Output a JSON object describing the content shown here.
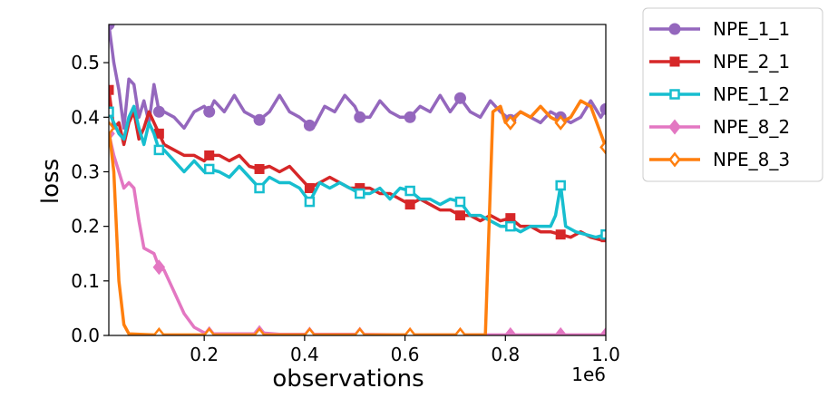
{
  "chart_data": {
    "type": "line",
    "title": "",
    "xlabel": "observations",
    "ylabel": "loss",
    "x_offset_label": "1e6",
    "xlim": [
      0.01,
      1.0
    ],
    "ylim": [
      0.0,
      0.57
    ],
    "xticks": [
      0.2,
      0.4,
      0.6,
      0.8,
      1.0
    ],
    "xtick_labels": [
      "0.2",
      "0.4",
      "0.6",
      "0.8",
      "1.0"
    ],
    "yticks": [
      0.0,
      0.1,
      0.2,
      0.3,
      0.4,
      0.5
    ],
    "ytick_labels": [
      "0.0",
      "0.1",
      "0.2",
      "0.3",
      "0.4",
      "0.5"
    ],
    "grid": false,
    "legend_position": "outside-right",
    "series": [
      {
        "name": "NPE_1_1",
        "color": "#9467bd",
        "marker": "circle",
        "marker_filled": true,
        "points": [
          [
            0.01,
            0.57
          ],
          [
            0.02,
            0.5
          ],
          [
            0.03,
            0.45
          ],
          [
            0.04,
            0.38
          ],
          [
            0.05,
            0.47
          ],
          [
            0.06,
            0.46
          ],
          [
            0.07,
            0.4
          ],
          [
            0.08,
            0.43
          ],
          [
            0.09,
            0.39
          ],
          [
            0.1,
            0.46
          ],
          [
            0.11,
            0.41
          ],
          [
            0.12,
            0.41
          ],
          [
            0.14,
            0.4
          ],
          [
            0.16,
            0.38
          ],
          [
            0.18,
            0.41
          ],
          [
            0.2,
            0.42
          ],
          [
            0.21,
            0.41
          ],
          [
            0.22,
            0.43
          ],
          [
            0.24,
            0.41
          ],
          [
            0.26,
            0.44
          ],
          [
            0.28,
            0.41
          ],
          [
            0.3,
            0.4
          ],
          [
            0.31,
            0.395
          ],
          [
            0.33,
            0.41
          ],
          [
            0.35,
            0.44
          ],
          [
            0.37,
            0.41
          ],
          [
            0.39,
            0.4
          ],
          [
            0.41,
            0.385
          ],
          [
            0.42,
            0.385
          ],
          [
            0.44,
            0.42
          ],
          [
            0.46,
            0.41
          ],
          [
            0.48,
            0.44
          ],
          [
            0.5,
            0.42
          ],
          [
            0.51,
            0.4
          ],
          [
            0.53,
            0.4
          ],
          [
            0.55,
            0.43
          ],
          [
            0.57,
            0.41
          ],
          [
            0.59,
            0.4
          ],
          [
            0.61,
            0.4
          ],
          [
            0.63,
            0.42
          ],
          [
            0.65,
            0.41
          ],
          [
            0.67,
            0.44
          ],
          [
            0.69,
            0.41
          ],
          [
            0.71,
            0.435
          ],
          [
            0.73,
            0.41
          ],
          [
            0.75,
            0.4
          ],
          [
            0.77,
            0.43
          ],
          [
            0.79,
            0.41
          ],
          [
            0.81,
            0.395
          ],
          [
            0.83,
            0.41
          ],
          [
            0.85,
            0.4
          ],
          [
            0.87,
            0.39
          ],
          [
            0.89,
            0.41
          ],
          [
            0.91,
            0.4
          ],
          [
            0.93,
            0.39
          ],
          [
            0.95,
            0.4
          ],
          [
            0.97,
            0.43
          ],
          [
            0.99,
            0.4
          ],
          [
            1.0,
            0.415
          ]
        ],
        "marker_x": [
          0.01,
          0.11,
          0.21,
          0.31,
          0.41,
          0.51,
          0.61,
          0.71,
          0.81,
          0.91,
          1.0
        ]
      },
      {
        "name": "NPE_2_1",
        "color": "#d62728",
        "marker": "square",
        "marker_filled": true,
        "points": [
          [
            0.01,
            0.45
          ],
          [
            0.02,
            0.38
          ],
          [
            0.03,
            0.39
          ],
          [
            0.04,
            0.35
          ],
          [
            0.05,
            0.39
          ],
          [
            0.06,
            0.41
          ],
          [
            0.07,
            0.36
          ],
          [
            0.08,
            0.38
          ],
          [
            0.09,
            0.41
          ],
          [
            0.1,
            0.39
          ],
          [
            0.11,
            0.37
          ],
          [
            0.12,
            0.35
          ],
          [
            0.14,
            0.34
          ],
          [
            0.16,
            0.33
          ],
          [
            0.18,
            0.33
          ],
          [
            0.2,
            0.32
          ],
          [
            0.21,
            0.33
          ],
          [
            0.23,
            0.33
          ],
          [
            0.25,
            0.32
          ],
          [
            0.27,
            0.33
          ],
          [
            0.29,
            0.31
          ],
          [
            0.31,
            0.305
          ],
          [
            0.33,
            0.31
          ],
          [
            0.35,
            0.3
          ],
          [
            0.37,
            0.31
          ],
          [
            0.39,
            0.29
          ],
          [
            0.41,
            0.27
          ],
          [
            0.43,
            0.28
          ],
          [
            0.45,
            0.29
          ],
          [
            0.47,
            0.28
          ],
          [
            0.49,
            0.27
          ],
          [
            0.51,
            0.27
          ],
          [
            0.53,
            0.27
          ],
          [
            0.55,
            0.26
          ],
          [
            0.57,
            0.26
          ],
          [
            0.59,
            0.25
          ],
          [
            0.61,
            0.24
          ],
          [
            0.63,
            0.25
          ],
          [
            0.65,
            0.24
          ],
          [
            0.67,
            0.23
          ],
          [
            0.69,
            0.23
          ],
          [
            0.71,
            0.22
          ],
          [
            0.73,
            0.22
          ],
          [
            0.75,
            0.21
          ],
          [
            0.77,
            0.22
          ],
          [
            0.79,
            0.21
          ],
          [
            0.81,
            0.215
          ],
          [
            0.83,
            0.2
          ],
          [
            0.85,
            0.2
          ],
          [
            0.87,
            0.19
          ],
          [
            0.89,
            0.19
          ],
          [
            0.91,
            0.185
          ],
          [
            0.93,
            0.18
          ],
          [
            0.95,
            0.19
          ],
          [
            0.97,
            0.18
          ],
          [
            0.99,
            0.175
          ],
          [
            1.0,
            0.18
          ]
        ],
        "marker_x": [
          0.01,
          0.11,
          0.21,
          0.31,
          0.41,
          0.51,
          0.61,
          0.71,
          0.81,
          0.91,
          1.0
        ]
      },
      {
        "name": "NPE_1_2",
        "color": "#17becf",
        "marker": "square",
        "marker_filled": false,
        "points": [
          [
            0.01,
            0.41
          ],
          [
            0.02,
            0.39
          ],
          [
            0.03,
            0.37
          ],
          [
            0.04,
            0.36
          ],
          [
            0.05,
            0.4
          ],
          [
            0.06,
            0.42
          ],
          [
            0.07,
            0.38
          ],
          [
            0.08,
            0.35
          ],
          [
            0.09,
            0.39
          ],
          [
            0.1,
            0.37
          ],
          [
            0.11,
            0.34
          ],
          [
            0.12,
            0.34
          ],
          [
            0.14,
            0.32
          ],
          [
            0.16,
            0.3
          ],
          [
            0.18,
            0.32
          ],
          [
            0.2,
            0.3
          ],
          [
            0.21,
            0.305
          ],
          [
            0.23,
            0.3
          ],
          [
            0.25,
            0.29
          ],
          [
            0.27,
            0.31
          ],
          [
            0.29,
            0.29
          ],
          [
            0.31,
            0.27
          ],
          [
            0.33,
            0.29
          ],
          [
            0.35,
            0.28
          ],
          [
            0.37,
            0.28
          ],
          [
            0.39,
            0.27
          ],
          [
            0.41,
            0.245
          ],
          [
            0.43,
            0.28
          ],
          [
            0.45,
            0.27
          ],
          [
            0.47,
            0.28
          ],
          [
            0.49,
            0.27
          ],
          [
            0.51,
            0.26
          ],
          [
            0.53,
            0.26
          ],
          [
            0.55,
            0.27
          ],
          [
            0.57,
            0.25
          ],
          [
            0.59,
            0.27
          ],
          [
            0.61,
            0.265
          ],
          [
            0.63,
            0.25
          ],
          [
            0.65,
            0.25
          ],
          [
            0.67,
            0.24
          ],
          [
            0.69,
            0.25
          ],
          [
            0.71,
            0.245
          ],
          [
            0.73,
            0.22
          ],
          [
            0.75,
            0.22
          ],
          [
            0.77,
            0.21
          ],
          [
            0.79,
            0.2
          ],
          [
            0.81,
            0.2
          ],
          [
            0.83,
            0.19
          ],
          [
            0.85,
            0.2
          ],
          [
            0.87,
            0.2
          ],
          [
            0.89,
            0.2
          ],
          [
            0.9,
            0.22
          ],
          [
            0.91,
            0.275
          ],
          [
            0.92,
            0.2
          ],
          [
            0.94,
            0.19
          ],
          [
            0.96,
            0.185
          ],
          [
            0.98,
            0.18
          ],
          [
            1.0,
            0.185
          ]
        ],
        "marker_x": [
          0.01,
          0.11,
          0.21,
          0.31,
          0.41,
          0.51,
          0.61,
          0.71,
          0.81,
          0.91,
          1.0
        ]
      },
      {
        "name": "NPE_8_2",
        "color": "#e377c2",
        "marker": "diamond",
        "marker_filled": true,
        "points": [
          [
            0.01,
            0.37
          ],
          [
            0.02,
            0.33
          ],
          [
            0.03,
            0.3
          ],
          [
            0.04,
            0.27
          ],
          [
            0.05,
            0.28
          ],
          [
            0.06,
            0.27
          ],
          [
            0.07,
            0.21
          ],
          [
            0.08,
            0.16
          ],
          [
            0.1,
            0.15
          ],
          [
            0.11,
            0.125
          ],
          [
            0.12,
            0.12
          ],
          [
            0.14,
            0.08
          ],
          [
            0.16,
            0.04
          ],
          [
            0.18,
            0.015
          ],
          [
            0.2,
            0.005
          ],
          [
            0.21,
            0.003
          ],
          [
            0.25,
            0.003
          ],
          [
            0.3,
            0.003
          ],
          [
            0.31,
            0.005
          ],
          [
            0.35,
            0.002
          ],
          [
            0.4,
            0.002
          ],
          [
            0.5,
            0.002
          ],
          [
            0.6,
            0.001
          ],
          [
            0.7,
            0.001
          ],
          [
            0.8,
            0.001
          ],
          [
            0.9,
            0.001
          ],
          [
            1.0,
            0.001
          ]
        ],
        "marker_x": [
          0.01,
          0.11,
          0.21,
          0.31,
          0.41,
          0.51,
          0.61,
          0.71,
          0.81,
          0.91,
          1.0
        ]
      },
      {
        "name": "NPE_8_3",
        "color": "#ff7f0e",
        "marker": "diamond",
        "marker_filled": false,
        "points": [
          [
            0.01,
            0.38
          ],
          [
            0.02,
            0.3
          ],
          [
            0.03,
            0.1
          ],
          [
            0.04,
            0.02
          ],
          [
            0.05,
            0.003
          ],
          [
            0.1,
            0.001
          ],
          [
            0.2,
            0.001
          ],
          [
            0.3,
            0.001
          ],
          [
            0.4,
            0.001
          ],
          [
            0.5,
            0.001
          ],
          [
            0.6,
            0.001
          ],
          [
            0.7,
            0.001
          ],
          [
            0.76,
            0.001
          ],
          [
            0.775,
            0.41
          ],
          [
            0.79,
            0.42
          ],
          [
            0.8,
            0.39
          ],
          [
            0.81,
            0.39
          ],
          [
            0.83,
            0.41
          ],
          [
            0.85,
            0.4
          ],
          [
            0.87,
            0.42
          ],
          [
            0.89,
            0.4
          ],
          [
            0.91,
            0.39
          ],
          [
            0.93,
            0.4
          ],
          [
            0.95,
            0.43
          ],
          [
            0.97,
            0.42
          ],
          [
            0.99,
            0.37
          ],
          [
            1.0,
            0.345
          ]
        ],
        "marker_x": [
          0.01,
          0.11,
          0.21,
          0.31,
          0.41,
          0.51,
          0.61,
          0.71,
          0.81,
          0.91,
          1.0
        ]
      }
    ]
  }
}
